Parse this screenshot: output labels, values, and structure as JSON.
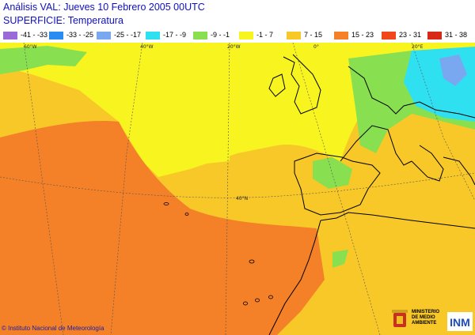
{
  "title": "Análisis VAL: Jueves 10 Febrero 2005 00UTC",
  "subtitle": "SUPERFICIE: Temperatura",
  "legend": [
    {
      "label": "-41 - -33",
      "color": "#9a6ad8"
    },
    {
      "label": "-33 - -25",
      "color": "#2a8cf0"
    },
    {
      "label": "-25 - -17",
      "color": "#7aa8f0"
    },
    {
      "label": "-17 - -9",
      "color": "#2ee0f0"
    },
    {
      "label": "-9 - -1",
      "color": "#88e050"
    },
    {
      "label": "-1 - 7",
      "color": "#f8f420"
    },
    {
      "label": "7 - 15",
      "color": "#f8c828"
    },
    {
      "label": "15 - 23",
      "color": "#f48028"
    },
    {
      "label": "23 - 31",
      "color": "#f04818"
    },
    {
      "label": "31 - 38",
      "color": "#d82818"
    }
  ],
  "graticule": {
    "lon_labels": [
      "60°W",
      "40°W",
      "20°W",
      "0°",
      "20°E"
    ],
    "lat_labels": [
      "40°N"
    ]
  },
  "copyright": "© Instituto Nacional de Meteorología",
  "ministry": "MINISTERIO\nDE MEDIO\nAMBIENTE",
  "logo_text": "INM"
}
